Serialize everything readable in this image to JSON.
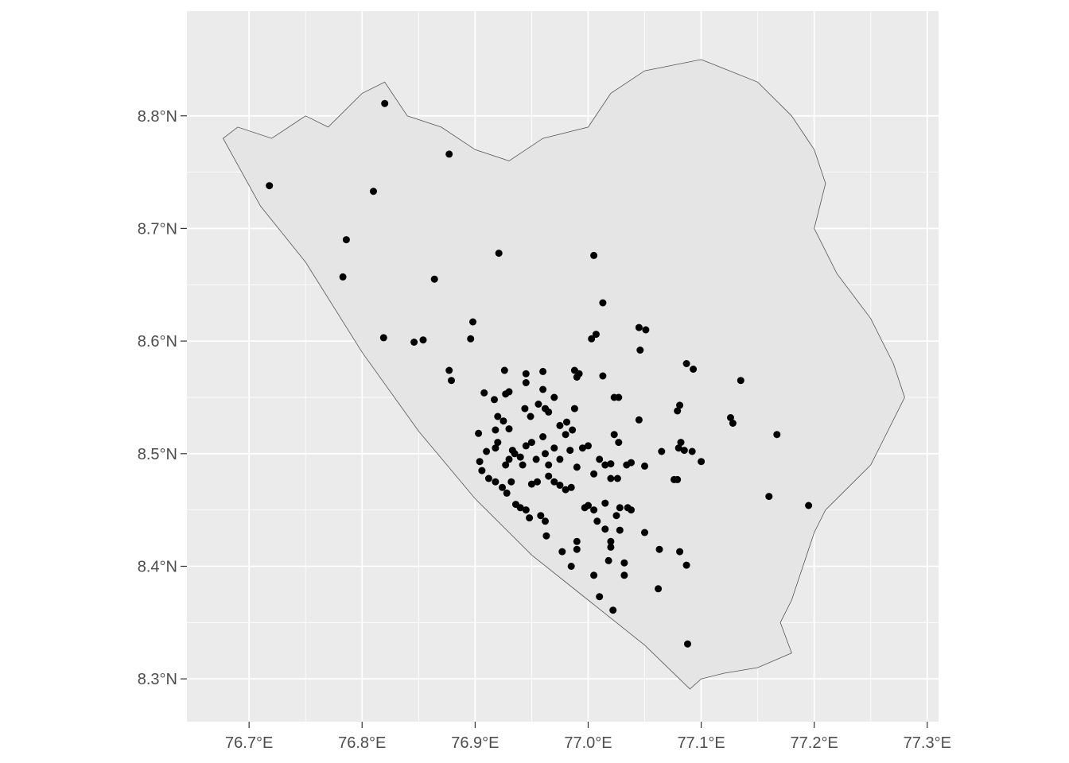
{
  "chart_data": {
    "type": "scatter",
    "title": "",
    "xlabel": "",
    "ylabel": "",
    "xlim": [
      76.645,
      77.31
    ],
    "ylim": [
      8.262,
      8.893
    ],
    "x_ticks": [
      76.7,
      76.8,
      76.9,
      77.0,
      77.1,
      77.2,
      77.3
    ],
    "x_tick_labels": [
      "76.7°E",
      "76.8°E",
      "76.9°E",
      "77.0°E",
      "77.1°E",
      "77.2°E",
      "77.3°E"
    ],
    "y_ticks": [
      8.3,
      8.4,
      8.5,
      8.6,
      8.7,
      8.8
    ],
    "y_tick_labels": [
      "8.3°N",
      "8.4°N",
      "8.5°N",
      "8.6°N",
      "8.7°N",
      "8.8°N"
    ],
    "grid": true,
    "colors": {
      "panel_background": "#ebebeb",
      "grid_line": "#ffffff",
      "polygon_fill": "#e5e5e5",
      "polygon_stroke": "#555555",
      "point": "#000000"
    },
    "region_outline": [
      [
        76.677,
        8.78
      ],
      [
        76.69,
        8.79
      ],
      [
        76.72,
        8.78
      ],
      [
        76.75,
        8.8
      ],
      [
        76.77,
        8.79
      ],
      [
        76.8,
        8.82
      ],
      [
        76.82,
        8.83
      ],
      [
        76.84,
        8.8
      ],
      [
        76.87,
        8.79
      ],
      [
        76.9,
        8.77
      ],
      [
        76.93,
        8.76
      ],
      [
        76.96,
        8.78
      ],
      [
        77.0,
        8.79
      ],
      [
        77.02,
        8.82
      ],
      [
        77.05,
        8.84
      ],
      [
        77.1,
        8.85
      ],
      [
        77.15,
        8.83
      ],
      [
        77.18,
        8.8
      ],
      [
        77.2,
        8.77
      ],
      [
        77.21,
        8.74
      ],
      [
        77.2,
        8.7
      ],
      [
        77.22,
        8.66
      ],
      [
        77.25,
        8.62
      ],
      [
        77.27,
        8.58
      ],
      [
        77.28,
        8.55
      ],
      [
        77.265,
        8.52
      ],
      [
        77.25,
        8.49
      ],
      [
        77.23,
        8.47
      ],
      [
        77.21,
        8.45
      ],
      [
        77.2,
        8.43
      ],
      [
        77.19,
        8.4
      ],
      [
        77.18,
        8.37
      ],
      [
        77.17,
        8.35
      ],
      [
        77.18,
        8.323
      ],
      [
        77.15,
        8.31
      ],
      [
        77.12,
        8.305
      ],
      [
        77.1,
        8.3
      ],
      [
        77.09,
        8.291
      ],
      [
        77.05,
        8.33
      ],
      [
        77.0,
        8.37
      ],
      [
        76.95,
        8.41
      ],
      [
        76.9,
        8.46
      ],
      [
        76.85,
        8.52
      ],
      [
        76.8,
        8.59
      ],
      [
        76.75,
        8.67
      ],
      [
        76.71,
        8.72
      ],
      [
        76.677,
        8.78
      ]
    ],
    "points": [
      {
        "lon": 76.718,
        "lat": 8.738
      },
      {
        "lon": 76.82,
        "lat": 8.811
      },
      {
        "lon": 76.877,
        "lat": 8.766
      },
      {
        "lon": 76.81,
        "lat": 8.733
      },
      {
        "lon": 76.786,
        "lat": 8.69
      },
      {
        "lon": 76.783,
        "lat": 8.657
      },
      {
        "lon": 76.921,
        "lat": 8.678
      },
      {
        "lon": 76.864,
        "lat": 8.655
      },
      {
        "lon": 77.005,
        "lat": 8.676
      },
      {
        "lon": 77.013,
        "lat": 8.634
      },
      {
        "lon": 76.819,
        "lat": 8.603
      },
      {
        "lon": 76.846,
        "lat": 8.599
      },
      {
        "lon": 76.854,
        "lat": 8.601
      },
      {
        "lon": 76.896,
        "lat": 8.602
      },
      {
        "lon": 76.898,
        "lat": 8.617
      },
      {
        "lon": 76.877,
        "lat": 8.574
      },
      {
        "lon": 76.879,
        "lat": 8.565
      },
      {
        "lon": 77.003,
        "lat": 8.602
      },
      {
        "lon": 77.007,
        "lat": 8.606
      },
      {
        "lon": 77.045,
        "lat": 8.612
      },
      {
        "lon": 77.051,
        "lat": 8.61
      },
      {
        "lon": 77.046,
        "lat": 8.592
      },
      {
        "lon": 76.926,
        "lat": 8.574
      },
      {
        "lon": 76.945,
        "lat": 8.571
      },
      {
        "lon": 76.96,
        "lat": 8.573
      },
      {
        "lon": 76.988,
        "lat": 8.574
      },
      {
        "lon": 76.99,
        "lat": 8.568
      },
      {
        "lon": 76.992,
        "lat": 8.571
      },
      {
        "lon": 77.013,
        "lat": 8.569
      },
      {
        "lon": 77.087,
        "lat": 8.58
      },
      {
        "lon": 77.093,
        "lat": 8.575
      },
      {
        "lon": 77.135,
        "lat": 8.565
      },
      {
        "lon": 76.908,
        "lat": 8.554
      },
      {
        "lon": 76.917,
        "lat": 8.548
      },
      {
        "lon": 76.927,
        "lat": 8.553
      },
      {
        "lon": 76.93,
        "lat": 8.555
      },
      {
        "lon": 76.945,
        "lat": 8.563
      },
      {
        "lon": 76.96,
        "lat": 8.557
      },
      {
        "lon": 76.97,
        "lat": 8.55
      },
      {
        "lon": 77.023,
        "lat": 8.55
      },
      {
        "lon": 77.027,
        "lat": 8.55
      },
      {
        "lon": 77.081,
        "lat": 8.543
      },
      {
        "lon": 77.079,
        "lat": 8.538
      },
      {
        "lon": 77.126,
        "lat": 8.532
      },
      {
        "lon": 77.128,
        "lat": 8.527
      },
      {
        "lon": 76.903,
        "lat": 8.518
      },
      {
        "lon": 76.918,
        "lat": 8.521
      },
      {
        "lon": 76.92,
        "lat": 8.533
      },
      {
        "lon": 76.925,
        "lat": 8.529
      },
      {
        "lon": 76.93,
        "lat": 8.522
      },
      {
        "lon": 76.944,
        "lat": 8.54
      },
      {
        "lon": 76.949,
        "lat": 8.533
      },
      {
        "lon": 76.956,
        "lat": 8.544
      },
      {
        "lon": 76.962,
        "lat": 8.54
      },
      {
        "lon": 76.965,
        "lat": 8.537
      },
      {
        "lon": 76.975,
        "lat": 8.525
      },
      {
        "lon": 76.981,
        "lat": 8.528
      },
      {
        "lon": 76.986,
        "lat": 8.521
      },
      {
        "lon": 76.988,
        "lat": 8.54
      },
      {
        "lon": 77.023,
        "lat": 8.517
      },
      {
        "lon": 77.027,
        "lat": 8.51
      },
      {
        "lon": 77.045,
        "lat": 8.53
      },
      {
        "lon": 77.167,
        "lat": 8.517
      },
      {
        "lon": 76.904,
        "lat": 8.493
      },
      {
        "lon": 76.91,
        "lat": 8.502
      },
      {
        "lon": 76.918,
        "lat": 8.505
      },
      {
        "lon": 76.92,
        "lat": 8.51
      },
      {
        "lon": 76.927,
        "lat": 8.49
      },
      {
        "lon": 76.93,
        "lat": 8.495
      },
      {
        "lon": 76.933,
        "lat": 8.503
      },
      {
        "lon": 76.935,
        "lat": 8.5
      },
      {
        "lon": 76.94,
        "lat": 8.497
      },
      {
        "lon": 76.942,
        "lat": 8.49
      },
      {
        "lon": 76.945,
        "lat": 8.507
      },
      {
        "lon": 76.95,
        "lat": 8.51
      },
      {
        "lon": 76.954,
        "lat": 8.495
      },
      {
        "lon": 76.96,
        "lat": 8.515
      },
      {
        "lon": 76.962,
        "lat": 8.5
      },
      {
        "lon": 76.965,
        "lat": 8.49
      },
      {
        "lon": 76.97,
        "lat": 8.505
      },
      {
        "lon": 76.975,
        "lat": 8.495
      },
      {
        "lon": 76.98,
        "lat": 8.517
      },
      {
        "lon": 76.984,
        "lat": 8.503
      },
      {
        "lon": 76.99,
        "lat": 8.488
      },
      {
        "lon": 76.995,
        "lat": 8.505
      },
      {
        "lon": 77.0,
        "lat": 8.507
      },
      {
        "lon": 77.005,
        "lat": 8.482
      },
      {
        "lon": 77.01,
        "lat": 8.495
      },
      {
        "lon": 77.015,
        "lat": 8.49
      },
      {
        "lon": 77.02,
        "lat": 8.491
      },
      {
        "lon": 77.026,
        "lat": 8.478
      },
      {
        "lon": 77.034,
        "lat": 8.49
      },
      {
        "lon": 77.038,
        "lat": 8.492
      },
      {
        "lon": 77.05,
        "lat": 8.489
      },
      {
        "lon": 77.065,
        "lat": 8.502
      },
      {
        "lon": 77.076,
        "lat": 8.477
      },
      {
        "lon": 77.079,
        "lat": 8.477
      },
      {
        "lon": 77.08,
        "lat": 8.505
      },
      {
        "lon": 77.082,
        "lat": 8.51
      },
      {
        "lon": 77.085,
        "lat": 8.503
      },
      {
        "lon": 77.092,
        "lat": 8.502
      },
      {
        "lon": 77.1,
        "lat": 8.493
      },
      {
        "lon": 76.906,
        "lat": 8.485
      },
      {
        "lon": 76.912,
        "lat": 8.478
      },
      {
        "lon": 76.918,
        "lat": 8.475
      },
      {
        "lon": 76.924,
        "lat": 8.47
      },
      {
        "lon": 76.928,
        "lat": 8.465
      },
      {
        "lon": 76.932,
        "lat": 8.475
      },
      {
        "lon": 76.936,
        "lat": 8.455
      },
      {
        "lon": 76.94,
        "lat": 8.452
      },
      {
        "lon": 76.945,
        "lat": 8.45
      },
      {
        "lon": 76.948,
        "lat": 8.443
      },
      {
        "lon": 76.95,
        "lat": 8.473
      },
      {
        "lon": 76.955,
        "lat": 8.475
      },
      {
        "lon": 76.958,
        "lat": 8.445
      },
      {
        "lon": 76.962,
        "lat": 8.44
      },
      {
        "lon": 76.965,
        "lat": 8.48
      },
      {
        "lon": 76.97,
        "lat": 8.475
      },
      {
        "lon": 76.975,
        "lat": 8.472
      },
      {
        "lon": 76.98,
        "lat": 8.468
      },
      {
        "lon": 76.985,
        "lat": 8.47
      },
      {
        "lon": 76.997,
        "lat": 8.452
      },
      {
        "lon": 77.0,
        "lat": 8.454
      },
      {
        "lon": 77.005,
        "lat": 8.45
      },
      {
        "lon": 77.008,
        "lat": 8.44
      },
      {
        "lon": 77.015,
        "lat": 8.456
      },
      {
        "lon": 77.02,
        "lat": 8.478
      },
      {
        "lon": 77.025,
        "lat": 8.445
      },
      {
        "lon": 77.028,
        "lat": 8.452
      },
      {
        "lon": 77.035,
        "lat": 8.452
      },
      {
        "lon": 77.038,
        "lat": 8.45
      },
      {
        "lon": 77.05,
        "lat": 8.43
      },
      {
        "lon": 77.16,
        "lat": 8.462
      },
      {
        "lon": 77.195,
        "lat": 8.454
      },
      {
        "lon": 76.963,
        "lat": 8.427
      },
      {
        "lon": 76.977,
        "lat": 8.413
      },
      {
        "lon": 76.985,
        "lat": 8.4
      },
      {
        "lon": 76.99,
        "lat": 8.422
      },
      {
        "lon": 76.99,
        "lat": 8.415
      },
      {
        "lon": 77.005,
        "lat": 8.392
      },
      {
        "lon": 77.015,
        "lat": 8.433
      },
      {
        "lon": 77.018,
        "lat": 8.405
      },
      {
        "lon": 77.02,
        "lat": 8.422
      },
      {
        "lon": 77.02,
        "lat": 8.417
      },
      {
        "lon": 77.028,
        "lat": 8.432
      },
      {
        "lon": 77.032,
        "lat": 8.392
      },
      {
        "lon": 77.032,
        "lat": 8.403
      },
      {
        "lon": 77.063,
        "lat": 8.415
      },
      {
        "lon": 77.081,
        "lat": 8.413
      },
      {
        "lon": 77.087,
        "lat": 8.401
      },
      {
        "lon": 77.01,
        "lat": 8.373
      },
      {
        "lon": 77.022,
        "lat": 8.361
      },
      {
        "lon": 77.062,
        "lat": 8.38
      },
      {
        "lon": 77.088,
        "lat": 8.331
      }
    ]
  }
}
